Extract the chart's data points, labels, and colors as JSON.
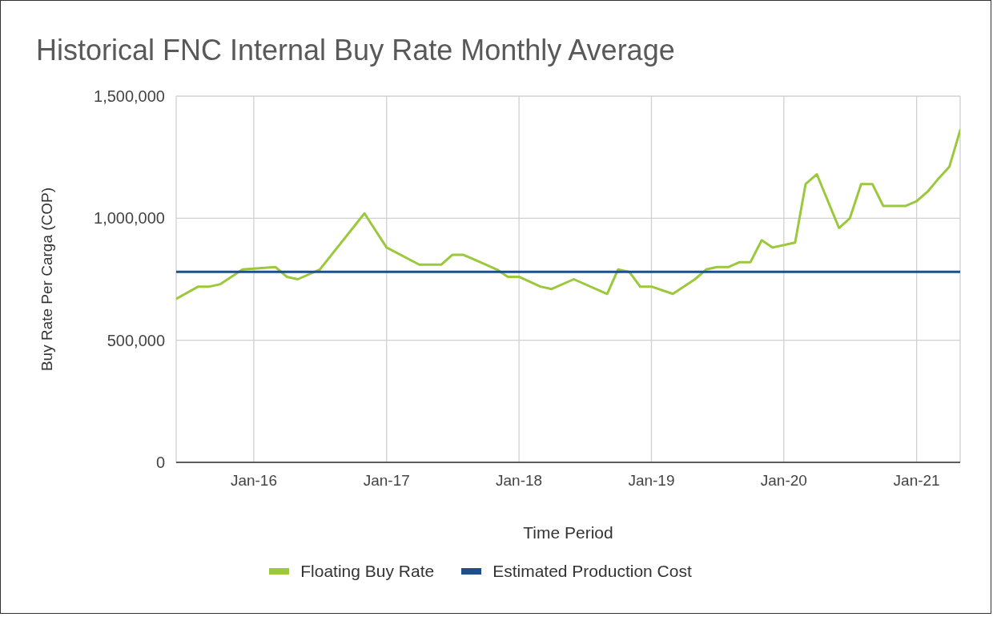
{
  "chart_data": {
    "type": "line",
    "title": "Historical FNC Internal Buy Rate Monthly Average",
    "xlabel": "Time Period",
    "ylabel": "Buy Rate Per Carga (COP)",
    "series": [
      {
        "name": "Floating Buy Rate",
        "color": "#9bc83c",
        "x": [
          "2015-06",
          "2015-08",
          "2015-09",
          "2015-10",
          "2015-12",
          "2016-03",
          "2016-04",
          "2016-05",
          "2016-07",
          "2016-11",
          "2017-01",
          "2017-04",
          "2017-06",
          "2017-07",
          "2017-08",
          "2017-09",
          "2017-11",
          "2017-12",
          "2018-01",
          "2018-03",
          "2018-04",
          "2018-06",
          "2018-09",
          "2018-10",
          "2018-11",
          "2018-12",
          "2019-01",
          "2019-03",
          "2019-05",
          "2019-06",
          "2019-07",
          "2019-08",
          "2019-09",
          "2019-10",
          "2019-11",
          "2019-12",
          "2020-02",
          "2020-03",
          "2020-04",
          "2020-06",
          "2020-07",
          "2020-08",
          "2020-09",
          "2020-10",
          "2020-11",
          "2020-12",
          "2021-01",
          "2021-02",
          "2021-03",
          "2021-04",
          "2021-05"
        ],
        "values": [
          670000,
          720000,
          720000,
          730000,
          790000,
          800000,
          760000,
          750000,
          790000,
          1020000,
          880000,
          810000,
          810000,
          850000,
          850000,
          830000,
          790000,
          760000,
          760000,
          720000,
          710000,
          750000,
          690000,
          790000,
          780000,
          720000,
          720000,
          690000,
          750000,
          790000,
          800000,
          800000,
          820000,
          820000,
          910000,
          880000,
          900000,
          1140000,
          1180000,
          960000,
          1000000,
          1140000,
          1140000,
          1050000,
          1050000,
          1050000,
          1070000,
          1110000,
          1160000,
          1210000,
          1360000
        ]
      },
      {
        "name": "Estimated Production Cost",
        "color": "#1f4e89",
        "x": [
          "2015-06",
          "2021-05"
        ],
        "values": [
          780000,
          780000
        ]
      }
    ],
    "xlim": [
      "2015-06",
      "2021-05"
    ],
    "xticks": [
      {
        "value": "2016-01",
        "label": "Jan-16"
      },
      {
        "value": "2017-01",
        "label": "Jan-17"
      },
      {
        "value": "2018-01",
        "label": "Jan-18"
      },
      {
        "value": "2019-01",
        "label": "Jan-19"
      },
      {
        "value": "2020-01",
        "label": "Jan-20"
      },
      {
        "value": "2021-01",
        "label": "Jan-21"
      }
    ],
    "ylim": [
      0,
      1500000
    ],
    "yticks": [
      0,
      {
        "value": 500000,
        "label": "500,000"
      },
      {
        "value": 1000000,
        "label": "1,000,000"
      },
      {
        "value": 1500000,
        "label": "1,500,000"
      }
    ],
    "grid": true,
    "legend": "bottom"
  }
}
